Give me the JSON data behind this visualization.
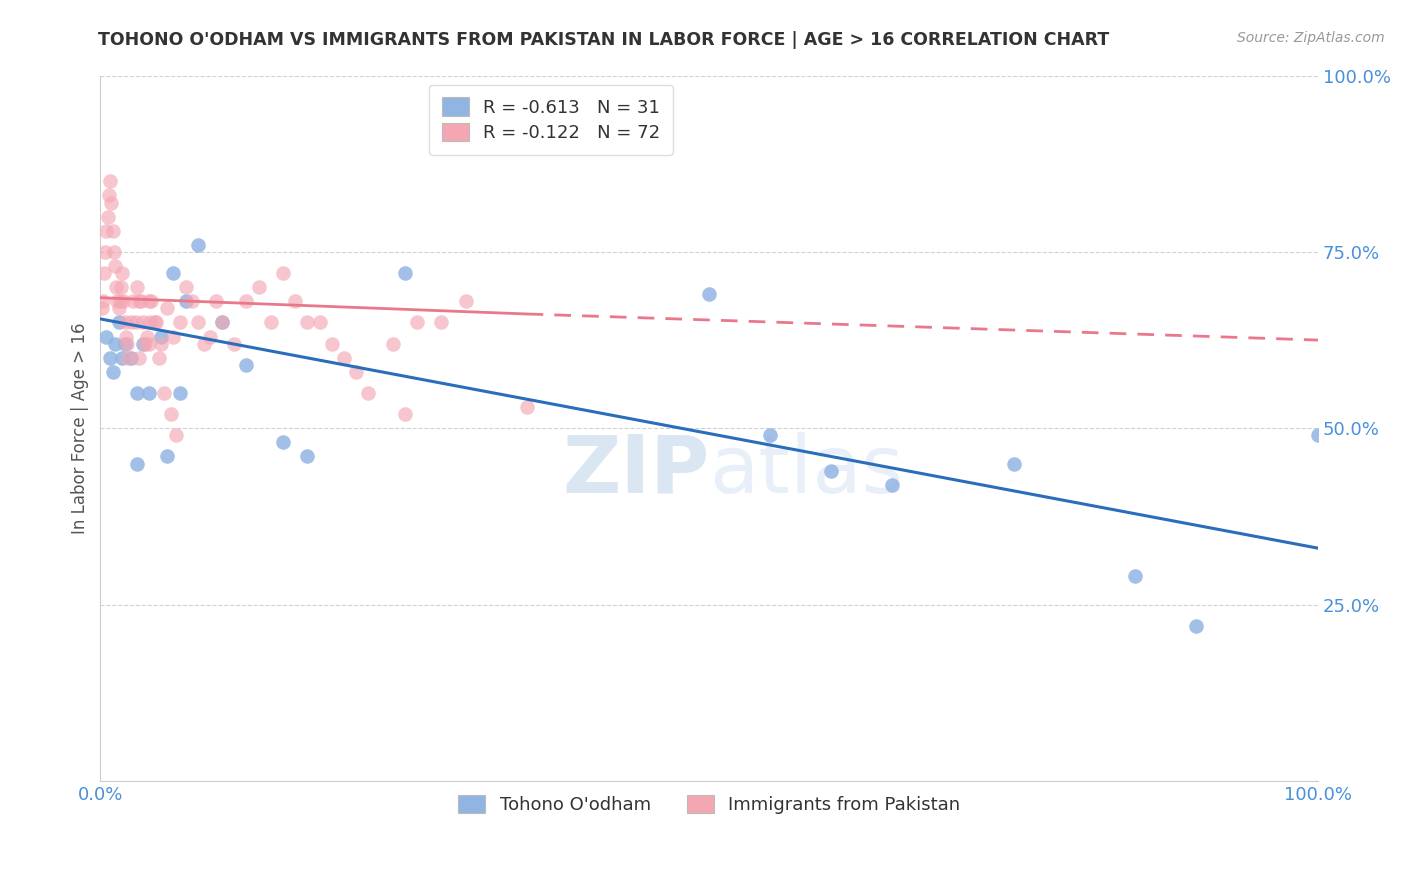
{
  "title": "TOHONO O'ODHAM VS IMMIGRANTS FROM PAKISTAN IN LABOR FORCE | AGE > 16 CORRELATION CHART",
  "source": "Source: ZipAtlas.com",
  "ylabel": "In Labor Force | Age > 16",
  "xlim": [
    0.0,
    1.0
  ],
  "ylim": [
    0.0,
    1.0
  ],
  "xticks": [
    0.0,
    0.25,
    0.5,
    0.75,
    1.0
  ],
  "xticklabels": [
    "0.0%",
    "",
    "",
    "",
    "100.0%"
  ],
  "yticks": [
    0.0,
    0.25,
    0.5,
    0.75,
    1.0
  ],
  "yticklabels": [
    "",
    "25.0%",
    "50.0%",
    "75.0%",
    "100.0%"
  ],
  "blue_R": "-0.613",
  "blue_N": "31",
  "pink_R": "-0.122",
  "pink_N": "72",
  "blue_color": "#92b4e3",
  "pink_color": "#f4a7b3",
  "blue_line_color": "#2a6ebb",
  "pink_line_color": "#e8788a",
  "background_color": "#ffffff",
  "grid_color": "#cccccc",
  "watermark": "ZIPatlas",
  "legend_label_blue": "Tohono O'odham",
  "legend_label_pink": "Immigrants from Pakistan",
  "blue_points_x": [
    0.005,
    0.008,
    0.01,
    0.012,
    0.015,
    0.018,
    0.02,
    0.025,
    0.03,
    0.035,
    0.04,
    0.05,
    0.06,
    0.07,
    0.08,
    0.1,
    0.12,
    0.15,
    0.17,
    0.25,
    0.5,
    0.55,
    0.6,
    0.65,
    0.75,
    0.85,
    0.9,
    1.0,
    0.03,
    0.055,
    0.065
  ],
  "blue_points_y": [
    0.63,
    0.6,
    0.58,
    0.62,
    0.65,
    0.6,
    0.62,
    0.6,
    0.55,
    0.62,
    0.55,
    0.63,
    0.72,
    0.68,
    0.76,
    0.65,
    0.59,
    0.48,
    0.46,
    0.72,
    0.69,
    0.49,
    0.44,
    0.42,
    0.45,
    0.29,
    0.22,
    0.49,
    0.45,
    0.46,
    0.55
  ],
  "pink_points_x": [
    0.001,
    0.002,
    0.003,
    0.004,
    0.005,
    0.006,
    0.007,
    0.008,
    0.009,
    0.01,
    0.011,
    0.012,
    0.013,
    0.014,
    0.015,
    0.016,
    0.017,
    0.018,
    0.019,
    0.02,
    0.021,
    0.022,
    0.023,
    0.025,
    0.027,
    0.03,
    0.032,
    0.035,
    0.038,
    0.04,
    0.045,
    0.05,
    0.055,
    0.06,
    0.065,
    0.07,
    0.075,
    0.08,
    0.085,
    0.09,
    0.095,
    0.1,
    0.11,
    0.12,
    0.13,
    0.14,
    0.15,
    0.16,
    0.18,
    0.2,
    0.22,
    0.25,
    0.28,
    0.3,
    0.35,
    0.17,
    0.19,
    0.21,
    0.24,
    0.26,
    0.04,
    0.042,
    0.046,
    0.032,
    0.029,
    0.033,
    0.037,
    0.041,
    0.048,
    0.052,
    0.058,
    0.062
  ],
  "pink_points_y": [
    0.67,
    0.68,
    0.72,
    0.75,
    0.78,
    0.8,
    0.83,
    0.85,
    0.82,
    0.78,
    0.75,
    0.73,
    0.7,
    0.68,
    0.67,
    0.68,
    0.7,
    0.72,
    0.68,
    0.65,
    0.63,
    0.62,
    0.6,
    0.65,
    0.68,
    0.7,
    0.68,
    0.65,
    0.63,
    0.68,
    0.65,
    0.62,
    0.67,
    0.63,
    0.65,
    0.7,
    0.68,
    0.65,
    0.62,
    0.63,
    0.68,
    0.65,
    0.62,
    0.68,
    0.7,
    0.65,
    0.72,
    0.68,
    0.65,
    0.6,
    0.55,
    0.52,
    0.65,
    0.68,
    0.53,
    0.65,
    0.62,
    0.58,
    0.62,
    0.65,
    0.62,
    0.68,
    0.65,
    0.6,
    0.65,
    0.68,
    0.62,
    0.65,
    0.6,
    0.55,
    0.52,
    0.49
  ],
  "blue_line_x0": 0.0,
  "blue_line_y0": 0.655,
  "blue_line_x1": 1.0,
  "blue_line_y1": 0.33,
  "pink_line_x0": 0.0,
  "pink_line_y0": 0.685,
  "pink_line_solid_x1": 0.35,
  "pink_line_solid_y1": 0.662,
  "pink_line_x1": 1.0,
  "pink_line_y1": 0.625
}
